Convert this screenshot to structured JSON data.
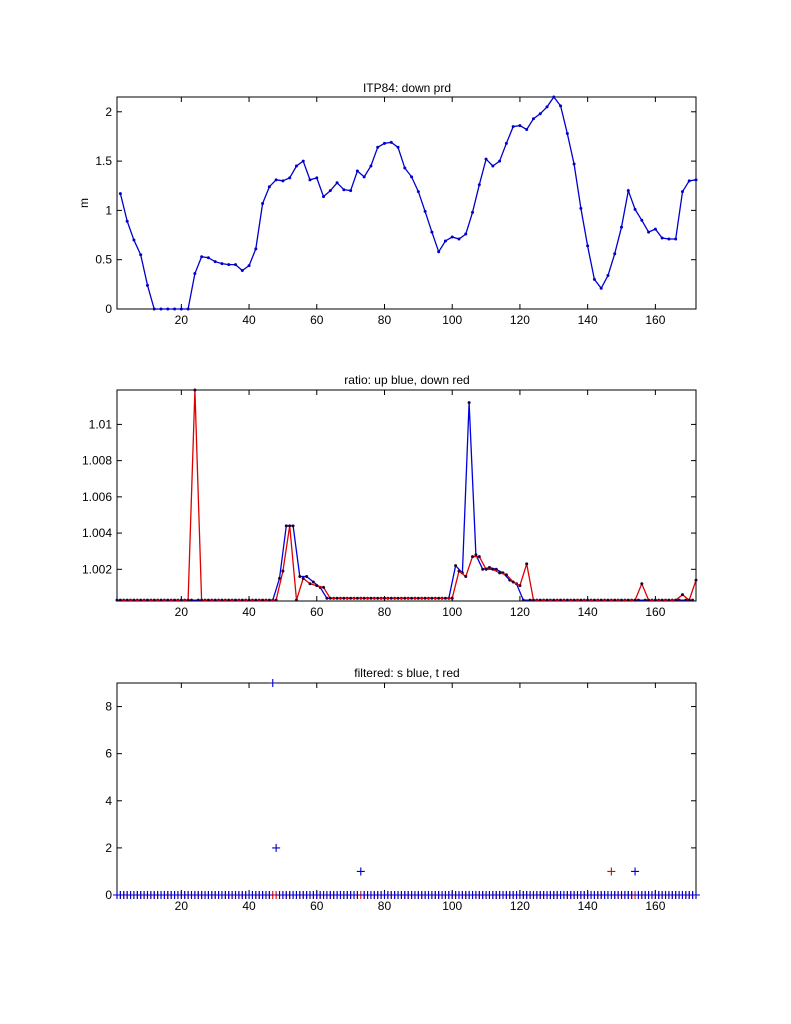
{
  "chart_data": [
    {
      "type": "line",
      "title": "ITP84: down prd",
      "xlabel": "",
      "ylabel": "m",
      "xlim": [
        1,
        172
      ],
      "ylim": [
        0,
        2.15
      ],
      "xticks": [
        20,
        40,
        60,
        80,
        100,
        120,
        140,
        160
      ],
      "yticks": [
        0,
        0.5,
        1,
        1.5,
        2
      ],
      "ytick_labels": [
        "0",
        "0.5",
        "1",
        "1.5",
        "2"
      ],
      "series": [
        {
          "color": "#0000cc",
          "marker": "dot",
          "x": [
            2,
            4,
            6,
            8,
            10,
            12,
            14,
            16,
            18,
            20,
            22,
            24,
            26,
            28,
            30,
            32,
            34,
            36,
            38,
            40,
            42,
            44,
            46,
            48,
            50,
            52,
            54,
            56,
            58,
            60,
            62,
            64,
            66,
            68,
            70,
            72,
            74,
            76,
            78,
            80,
            82,
            84,
            86,
            88,
            90,
            92,
            94,
            96,
            98,
            100,
            102,
            104,
            106,
            108,
            110,
            112,
            114,
            116,
            118,
            120,
            122,
            124,
            126,
            128,
            130,
            132,
            134,
            136,
            138,
            140,
            142,
            144,
            146,
            148,
            150,
            152,
            154,
            156,
            158,
            160,
            162,
            164,
            166,
            168,
            170,
            172
          ],
          "y": [
            1.17,
            0.89,
            0.7,
            0.55,
            0.24,
            0,
            0,
            0,
            0,
            0,
            0,
            0.36,
            0.53,
            0.52,
            0.48,
            0.46,
            0.45,
            0.45,
            0.39,
            0.44,
            0.61,
            1.07,
            1.24,
            1.31,
            1.3,
            1.33,
            1.45,
            1.5,
            1.31,
            1.33,
            1.14,
            1.2,
            1.28,
            1.21,
            1.2,
            1.4,
            1.34,
            1.45,
            1.64,
            1.68,
            1.69,
            1.64,
            1.43,
            1.34,
            1.19,
            0.99,
            0.78,
            0.58,
            0.69,
            0.73,
            0.71,
            0.76,
            0.98,
            1.26,
            1.52,
            1.45,
            1.5,
            1.68,
            1.85,
            1.86,
            1.82,
            1.93,
            1.98,
            2.05,
            2.15,
            2.06,
            1.78,
            1.47,
            1.02,
            0.64,
            0.3,
            0.21,
            0.34,
            0.56,
            0.83,
            1.2,
            1.01,
            0.9,
            0.78,
            0.81,
            0.72,
            0.71,
            0.71,
            1.19,
            1.3,
            1.31
          ]
        }
      ]
    },
    {
      "type": "line",
      "title": "ratio: up blue, down red",
      "xlabel": "",
      "ylabel": "",
      "xlim": [
        1,
        172
      ],
      "ylim": [
        1.00025,
        1.0119
      ],
      "xticks": [
        20,
        40,
        60,
        80,
        100,
        120,
        140,
        160
      ],
      "yticks": [
        1.002,
        1.004,
        1.006,
        1.008,
        1.01
      ],
      "ytick_labels": [
        "1.002",
        "1.004",
        "1.006",
        "1.008",
        "1.01"
      ],
      "series": [
        {
          "color": "#0000dd",
          "marker": "dot",
          "x": [
            1,
            3,
            5,
            7,
            9,
            11,
            13,
            15,
            17,
            19,
            21,
            23,
            25,
            27,
            29,
            31,
            33,
            35,
            37,
            39,
            41,
            43,
            45,
            47,
            49,
            51,
            53,
            55,
            57,
            59,
            61,
            63,
            65,
            67,
            69,
            71,
            73,
            75,
            77,
            79,
            81,
            83,
            85,
            87,
            89,
            91,
            93,
            95,
            97,
            99,
            101,
            103,
            105,
            107,
            109,
            111,
            113,
            115,
            117,
            119,
            121,
            123,
            125,
            127,
            129,
            131,
            133,
            135,
            137,
            139,
            141,
            143,
            145,
            147,
            149,
            151,
            153,
            155,
            157,
            159,
            161,
            163,
            165,
            167,
            169,
            171
          ],
          "y": [
            1.0003,
            1.0003,
            1.0003,
            1.0003,
            1.0003,
            1.0003,
            1.0003,
            1.0003,
            1.0003,
            1.0003,
            1.0003,
            1.0003,
            1.0003,
            1.0003,
            1.0003,
            1.0003,
            1.0003,
            1.0003,
            1.0003,
            1.0003,
            1.0003,
            1.0003,
            1.0003,
            1.0003,
            1.0015,
            1.0044,
            1.0044,
            1.0016,
            1.0016,
            1.0013,
            1.001,
            1.0004,
            1.0004,
            1.0004,
            1.0004,
            1.0004,
            1.0004,
            1.0004,
            1.0004,
            1.0004,
            1.0004,
            1.0004,
            1.0004,
            1.0004,
            1.0004,
            1.0004,
            1.0004,
            1.0004,
            1.0004,
            1.0004,
            1.0022,
            1.0018,
            1.0112,
            1.0028,
            1.002,
            1.0021,
            1.002,
            1.0018,
            1.0014,
            1.0012,
            1.0003,
            1.0003,
            1.0003,
            1.0003,
            1.0003,
            1.0003,
            1.0003,
            1.0003,
            1.0003,
            1.0003,
            1.0003,
            1.0003,
            1.0003,
            1.0003,
            1.0003,
            1.0003,
            1.0003,
            1.0003,
            1.0003,
            1.0003,
            1.0003,
            1.0003,
            1.0003,
            1.0003,
            1.0003,
            1.0003
          ]
        },
        {
          "color": "#dd0000",
          "marker": "dot",
          "x": [
            2,
            4,
            6,
            8,
            10,
            12,
            14,
            16,
            18,
            20,
            22,
            24,
            26,
            28,
            30,
            32,
            34,
            36,
            38,
            40,
            42,
            44,
            46,
            48,
            50,
            52,
            54,
            56,
            58,
            60,
            62,
            64,
            66,
            68,
            70,
            72,
            74,
            76,
            78,
            80,
            82,
            84,
            86,
            88,
            90,
            92,
            94,
            96,
            98,
            100,
            102,
            104,
            106,
            108,
            110,
            112,
            114,
            116,
            118,
            120,
            122,
            124,
            126,
            128,
            130,
            132,
            134,
            136,
            138,
            140,
            142,
            144,
            146,
            148,
            150,
            152,
            154,
            156,
            158,
            160,
            162,
            164,
            166,
            168,
            170,
            172
          ],
          "y": [
            1.0003,
            1.0003,
            1.0003,
            1.0003,
            1.0003,
            1.0003,
            1.0003,
            1.0003,
            1.0003,
            1.0003,
            1.0003,
            1.0119,
            1.0003,
            1.0003,
            1.0003,
            1.0003,
            1.0003,
            1.0003,
            1.0003,
            1.0003,
            1.0003,
            1.0003,
            1.0003,
            1.0003,
            1.0019,
            1.0044,
            1.0003,
            1.0015,
            1.0012,
            1.0011,
            1.001,
            1.0004,
            1.0004,
            1.0004,
            1.0004,
            1.0004,
            1.0004,
            1.0004,
            1.0004,
            1.0004,
            1.0004,
            1.0004,
            1.0004,
            1.0004,
            1.0004,
            1.0004,
            1.0004,
            1.0004,
            1.0004,
            1.0004,
            1.0019,
            1.0016,
            1.0027,
            1.0027,
            1.002,
            1.002,
            1.0018,
            1.0017,
            1.0013,
            1.0011,
            1.0023,
            1.0003,
            1.0003,
            1.0003,
            1.0003,
            1.0003,
            1.0003,
            1.0003,
            1.0003,
            1.0003,
            1.0003,
            1.0003,
            1.0003,
            1.0003,
            1.0003,
            1.0003,
            1.0003,
            1.0012,
            1.0003,
            1.0003,
            1.0003,
            1.0003,
            1.0003,
            1.0006,
            1.0003,
            1.0014
          ]
        }
      ]
    },
    {
      "type": "scatter",
      "title": "filtered: s blue, t red",
      "xlabel": "",
      "ylabel": "",
      "xlim": [
        1,
        172
      ],
      "ylim": [
        0,
        9
      ],
      "xticks": [
        20,
        40,
        60,
        80,
        100,
        120,
        140,
        160
      ],
      "yticks": [
        0,
        2,
        4,
        6,
        8
      ],
      "ytick_labels": [
        "0",
        "2",
        "4",
        "6",
        "8"
      ],
      "x_first": 1,
      "series": [
        {
          "color": "#dd0000",
          "marker": "plus",
          "y": [
            0,
            0,
            0,
            0,
            0,
            0,
            0,
            0,
            0,
            0,
            0,
            0,
            0,
            0,
            0,
            0,
            0,
            0,
            0,
            0,
            0,
            0,
            0,
            0,
            0,
            0,
            0,
            0,
            0,
            0,
            0,
            0,
            0,
            0,
            0,
            0,
            0,
            0,
            0,
            0,
            0,
            0,
            0,
            0,
            0,
            0,
            0,
            0,
            0,
            0,
            0,
            0,
            0,
            0,
            0,
            0,
            0,
            0,
            0,
            0,
            0,
            0,
            0,
            0,
            0,
            0,
            0,
            0,
            0,
            0,
            0,
            0,
            0,
            0,
            0,
            0,
            0,
            0,
            0,
            0,
            0,
            0,
            0,
            0,
            0,
            0,
            0,
            0,
            0,
            0,
            0,
            0,
            0,
            0,
            0,
            0,
            0,
            0,
            0,
            0,
            0,
            0,
            0,
            0,
            0,
            0,
            0,
            0,
            0,
            0,
            0,
            0,
            0,
            0,
            0,
            0,
            0,
            0,
            0,
            0,
            0,
            0,
            0,
            0,
            0,
            0,
            0,
            0,
            0,
            0,
            0,
            0,
            0,
            0,
            0,
            0,
            0,
            0,
            0,
            0,
            0,
            0,
            0,
            0,
            0,
            0,
            1,
            0,
            0,
            0,
            0,
            0,
            0,
            0,
            0,
            0,
            0,
            0,
            0,
            0,
            0,
            0,
            0,
            0,
            0,
            0,
            0,
            0,
            0,
            0,
            0,
            0
          ]
        },
        {
          "color": "#0000cc",
          "marker": "plus",
          "y": [
            0,
            0,
            0,
            0,
            0,
            0,
            0,
            0,
            0,
            0,
            0,
            0,
            0,
            0,
            0,
            0,
            0,
            0,
            0,
            0,
            0,
            0,
            0,
            0,
            0,
            0,
            0,
            0,
            0,
            0,
            0,
            0,
            0,
            0,
            0,
            0,
            0,
            0,
            0,
            0,
            0,
            0,
            0,
            0,
            0,
            0,
            9,
            2,
            0,
            0,
            0,
            0,
            0,
            0,
            0,
            0,
            0,
            0,
            0,
            0,
            0,
            0,
            0,
            0,
            0,
            0,
            0,
            0,
            0,
            0,
            0,
            0,
            1,
            0,
            0,
            0,
            0,
            0,
            0,
            0,
            0,
            0,
            0,
            0,
            0,
            0,
            0,
            0,
            0,
            0,
            0,
            0,
            0,
            0,
            0,
            0,
            0,
            0,
            0,
            0,
            0,
            0,
            0,
            0,
            0,
            0,
            0,
            0,
            0,
            0,
            0,
            0,
            0,
            0,
            0,
            0,
            0,
            0,
            0,
            0,
            0,
            0,
            0,
            0,
            0,
            0,
            0,
            0,
            0,
            0,
            0,
            0,
            0,
            0,
            0,
            0,
            0,
            0,
            0,
            0,
            0,
            0,
            0,
            0,
            0,
            0,
            0,
            0,
            0,
            0,
            0,
            0,
            0,
            1,
            0,
            0,
            0,
            0,
            0,
            0,
            0,
            0,
            0,
            0,
            0,
            0,
            0,
            0,
            0,
            0,
            0,
            0
          ]
        }
      ]
    }
  ]
}
